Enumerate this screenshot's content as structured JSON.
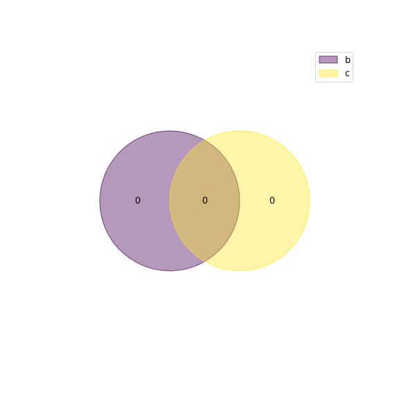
{
  "venn": {
    "sets": [
      {
        "name": "b",
        "color": "#440154"
      },
      {
        "name": "c",
        "color": "#fde725"
      }
    ],
    "regions": {
      "b_only": "0",
      "intersection": "0",
      "c_only": "0"
    },
    "fill_opacity": 0.4
  },
  "legend": {
    "position": "top-right",
    "items": [
      {
        "label": "b",
        "color": "#440154"
      },
      {
        "label": "c",
        "color": "#fde725"
      }
    ]
  }
}
